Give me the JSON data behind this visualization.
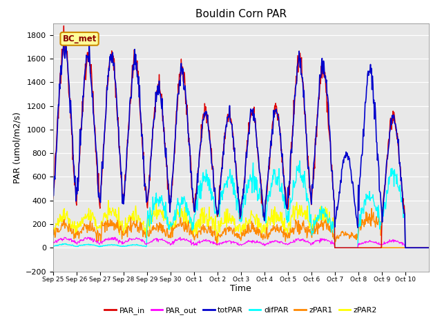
{
  "title": "Bouldin Corn PAR",
  "xlabel": "Time",
  "ylabel": "PAR (umol/m2/s)",
  "ylim": [
    -200,
    1900
  ],
  "yticks": [
    -200,
    0,
    200,
    400,
    600,
    800,
    1000,
    1200,
    1400,
    1600,
    1800
  ],
  "bg_color": "#e8e8e8",
  "legend_label": "BC_met",
  "series": [
    "PAR_in",
    "PAR_out",
    "totPAR",
    "difPAR",
    "zPAR1",
    "zPAR2"
  ],
  "colors": {
    "PAR_in": "#dd0000",
    "PAR_out": "#ff00ff",
    "totPAR": "#0000cc",
    "difPAR": "#00ffff",
    "zPAR1": "#ff8800",
    "zPAR2": "#ffff00"
  },
  "xtick_labels": [
    "Sep 25",
    "Sep 26",
    "Sep 27",
    "Sep 28",
    "Sep 29",
    "Sep 30",
    "Oct 1",
    "Oct 2",
    "Oct 3",
    "Oct 4",
    "Oct 5",
    "Oct 6",
    "Oct 7",
    "Oct 8",
    "Oct 9",
    "Oct 10"
  ],
  "n_days": 16,
  "pts_per_day": 48,
  "day_peaks": {
    "PAR_in": [
      1720,
      1610,
      1630,
      1580,
      1390,
      1510,
      1150,
      1140,
      1150,
      1155,
      1590,
      1490,
      0,
      0,
      1110,
      0
    ],
    "totPAR": [
      1720,
      1610,
      1630,
      1580,
      1340,
      1490,
      1130,
      1120,
      1130,
      1145,
      1570,
      1555,
      800,
      1510,
      1100,
      0
    ],
    "difPAR": [
      30,
      28,
      25,
      25,
      420,
      390,
      590,
      600,
      600,
      600,
      630,
      310,
      0,
      440,
      620,
      0
    ],
    "PAR_out": [
      80,
      80,
      80,
      80,
      75,
      75,
      60,
      55,
      55,
      55,
      70,
      70,
      0,
      55,
      60,
      0
    ],
    "zPAR1": [
      185,
      175,
      215,
      200,
      175,
      200,
      160,
      150,
      165,
      165,
      195,
      200,
      120,
      275,
      0,
      0
    ],
    "zPAR2": [
      270,
      280,
      300,
      260,
      305,
      290,
      270,
      255,
      270,
      270,
      330,
      290,
      0,
      0,
      0,
      0
    ]
  }
}
